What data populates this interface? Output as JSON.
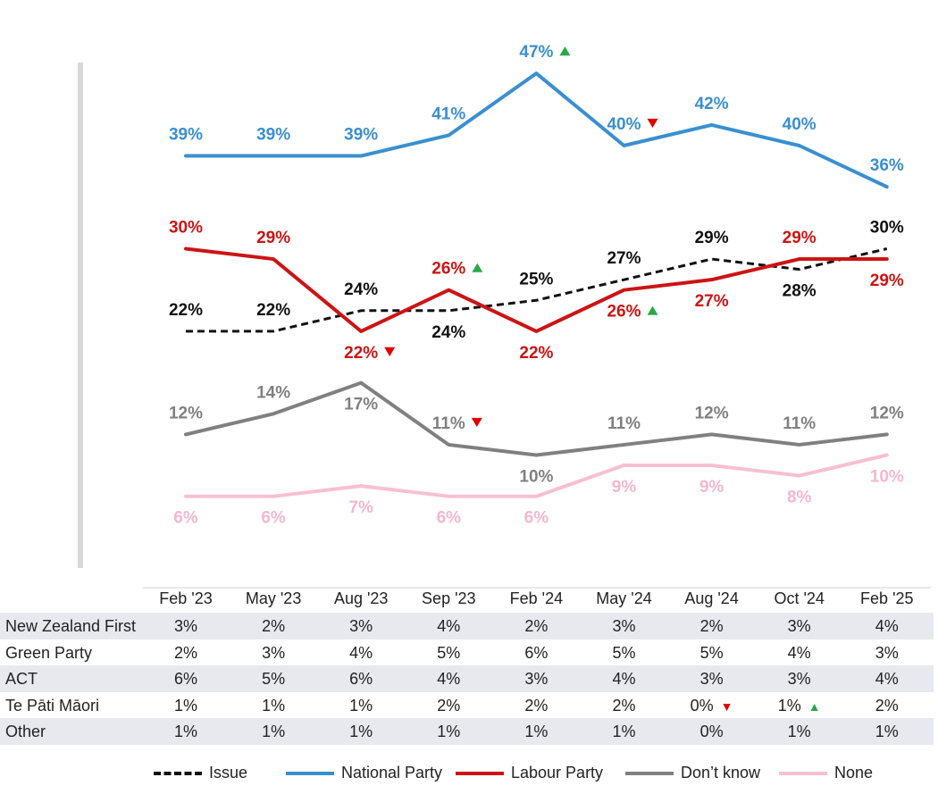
{
  "chart_data": {
    "type": "line",
    "categories": [
      "Feb '23",
      "May '23",
      "Aug '23",
      "Sep '23",
      "Feb '24",
      "May '24",
      "Aug '24",
      "Oct '24",
      "Feb '25"
    ],
    "ylim": [
      0,
      55
    ],
    "series": [
      {
        "name": "National Party",
        "color": "#3a8fd0",
        "dashed": false,
        "values": [
          39,
          39,
          39,
          41,
          47,
          40,
          42,
          40,
          36
        ],
        "labels": [
          "39%",
          "39%",
          "39%",
          "41%",
          "47%",
          "40%",
          "42%",
          "40%",
          "36%"
        ],
        "label_pos": [
          "above",
          "above",
          "above",
          "above",
          "above",
          "above",
          "above",
          "above",
          "above"
        ],
        "markers": [
          null,
          null,
          null,
          null,
          "up",
          "down",
          null,
          null,
          null
        ]
      },
      {
        "name": "Labour Party",
        "color": "#cc1414",
        "dashed": false,
        "values": [
          30,
          29,
          22,
          26,
          22,
          26,
          27,
          29,
          29
        ],
        "labels": [
          "30%",
          "29%",
          "22%",
          "26%",
          "22%",
          "26%",
          "27%",
          "29%",
          "29%"
        ],
        "label_pos": [
          "above",
          "above",
          "below",
          "above",
          "below",
          "below",
          "below",
          "above",
          "below"
        ],
        "markers": [
          null,
          null,
          "down",
          "up",
          null,
          "up",
          null,
          null,
          null
        ]
      },
      {
        "name": "Issue",
        "color": "#111111",
        "dashed": true,
        "values": [
          22,
          22,
          24,
          24,
          25,
          27,
          29,
          28,
          30
        ],
        "labels": [
          "22%",
          "22%",
          "24%",
          "24%",
          "25%",
          "27%",
          "29%",
          "28%",
          "30%"
        ],
        "label_pos": [
          "above",
          "above",
          "above",
          "below",
          "above",
          "above",
          "above",
          "below",
          "above"
        ],
        "markers": [
          null,
          null,
          null,
          null,
          null,
          null,
          null,
          null,
          null
        ]
      },
      {
        "name": "Don’t know",
        "color": "#808080",
        "dashed": false,
        "values": [
          12,
          14,
          17,
          11,
          10,
          11,
          12,
          11,
          12
        ],
        "labels": [
          "12%",
          "14%",
          "17%",
          "11%",
          "10%",
          "11%",
          "12%",
          "11%",
          "12%"
        ],
        "label_pos": [
          "above",
          "above",
          "below",
          "above",
          "below",
          "above",
          "above",
          "above",
          "above"
        ],
        "markers": [
          null,
          null,
          null,
          "down",
          null,
          null,
          null,
          null,
          null
        ]
      },
      {
        "name": "None",
        "color": "#f7bfd2",
        "dashed": false,
        "values": [
          6,
          6,
          7,
          6,
          6,
          9,
          9,
          8,
          10
        ],
        "labels": [
          "6%",
          "6%",
          "7%",
          "6%",
          "6%",
          "9%",
          "9%",
          "8%",
          "10%"
        ],
        "label_pos": [
          "below",
          "below",
          "below",
          "below",
          "below",
          "below",
          "below",
          "below",
          "below"
        ],
        "markers": [
          null,
          null,
          null,
          null,
          null,
          null,
          null,
          null,
          null
        ]
      }
    ],
    "up_color": "#2aa84a",
    "down_color": "#e00000"
  },
  "table": {
    "rows": [
      {
        "label": "New Zealand First",
        "values": [
          "3%",
          "2%",
          "3%",
          "4%",
          "2%",
          "3%",
          "2%",
          "3%",
          "4%"
        ],
        "markers": [
          null,
          null,
          null,
          null,
          null,
          null,
          null,
          null,
          null
        ]
      },
      {
        "label": "Green Party",
        "values": [
          "2%",
          "3%",
          "4%",
          "5%",
          "6%",
          "5%",
          "5%",
          "4%",
          "3%"
        ],
        "markers": [
          null,
          null,
          null,
          null,
          null,
          null,
          null,
          null,
          null
        ]
      },
      {
        "label": "ACT",
        "values": [
          "6%",
          "5%",
          "6%",
          "4%",
          "3%",
          "4%",
          "3%",
          "3%",
          "4%"
        ],
        "markers": [
          null,
          null,
          null,
          null,
          null,
          null,
          null,
          null,
          null
        ]
      },
      {
        "label": "Te Pāti Māori",
        "values": [
          "1%",
          "1%",
          "1%",
          "2%",
          "2%",
          "2%",
          "0%",
          "1%",
          "2%"
        ],
        "markers": [
          null,
          null,
          null,
          null,
          null,
          null,
          "down",
          "up",
          null
        ]
      },
      {
        "label": "Other",
        "values": [
          "1%",
          "1%",
          "1%",
          "1%",
          "1%",
          "1%",
          "0%",
          "1%",
          "1%"
        ],
        "markers": [
          null,
          null,
          null,
          null,
          null,
          null,
          null,
          null,
          null
        ]
      }
    ]
  },
  "legend": [
    {
      "label": "Issue",
      "color": "#111111",
      "dashed": true
    },
    {
      "label": "National Party",
      "color": "#3a8fd0",
      "dashed": false
    },
    {
      "label": "Labour Party",
      "color": "#cc1414",
      "dashed": false
    },
    {
      "label": "Don’t know",
      "color": "#808080",
      "dashed": false
    },
    {
      "label": "None",
      "color": "#f7bfd2",
      "dashed": false
    }
  ]
}
